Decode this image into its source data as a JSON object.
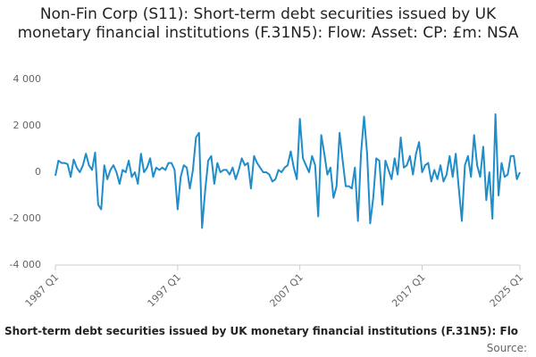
{
  "chart_data": {
    "type": "line",
    "title": "Non-Fin Corp (S11): Short-term debt securities issued by UK monetary financial institutions (F.31N5): Flow: Asset: CP: £m: NSA",
    "caption": "Short-term debt securities issued by UK monetary financial institutions (F.31N5): Flo",
    "source": "Source:",
    "categories": [
      "1987 Q1",
      null,
      null,
      null,
      null,
      null,
      null,
      null,
      null,
      null,
      null,
      null,
      null,
      null,
      null,
      null,
      null,
      null,
      null,
      null,
      null,
      null,
      null,
      null,
      null,
      null,
      null,
      null,
      null,
      null,
      null,
      null,
      null,
      null,
      null,
      null,
      null,
      null,
      null,
      null,
      "1997 Q1",
      null,
      null,
      null,
      null,
      null,
      null,
      null,
      null,
      null,
      null,
      null,
      null,
      null,
      null,
      null,
      null,
      null,
      null,
      null,
      null,
      null,
      null,
      null,
      null,
      null,
      null,
      null,
      null,
      null,
      null,
      null,
      null,
      null,
      null,
      null,
      null,
      null,
      null,
      null,
      "2007 Q1",
      null,
      null,
      null,
      null,
      null,
      null,
      null,
      null,
      null,
      null,
      null,
      null,
      null,
      null,
      null,
      null,
      null,
      null,
      null,
      null,
      null,
      null,
      null,
      null,
      null,
      null,
      null,
      null,
      null,
      null,
      null,
      null,
      null,
      null,
      null,
      null,
      null,
      null,
      null,
      "2017 Q1",
      null,
      null,
      null,
      null,
      null,
      null,
      null,
      null,
      null,
      null,
      null,
      null,
      null,
      null,
      null,
      null,
      null,
      null,
      null,
      null,
      null,
      null,
      null,
      null,
      null,
      null,
      null,
      null,
      null,
      null,
      null,
      "2025 Q1"
    ],
    "series": [
      {
        "color": "#1f8dc9",
        "values": [
          -150,
          500,
          400,
          400,
          350,
          -200,
          550,
          200,
          0,
          300,
          800,
          300,
          100,
          850,
          -1400,
          -1600,
          300,
          -300,
          100,
          300,
          0,
          -500,
          100,
          0,
          500,
          -200,
          0,
          -500,
          800,
          0,
          200,
          600,
          -200,
          200,
          100,
          200,
          100,
          400,
          400,
          100,
          -1600,
          -200,
          300,
          200,
          -700,
          100,
          1500,
          1700,
          -2400,
          -800,
          500,
          700,
          -500,
          400,
          0,
          100,
          100,
          -100,
          200,
          -300,
          100,
          600,
          300,
          400,
          -700,
          700,
          400,
          200,
          0,
          0,
          -100,
          -400,
          -300,
          100,
          0,
          200,
          300,
          900,
          200,
          -300,
          2300,
          600,
          300,
          0,
          700,
          300,
          -1900,
          1600,
          800,
          -100,
          200,
          -1100,
          -600,
          1700,
          500,
          -600,
          -600,
          -700,
          200,
          -2100,
          800,
          2400,
          800,
          -2200,
          -1100,
          600,
          500,
          -1400,
          500,
          100,
          -300,
          600,
          -100,
          1500,
          200,
          300,
          700,
          -100,
          800,
          1300,
          0,
          300,
          400,
          -400,
          100,
          -300,
          300,
          -400,
          -100,
          700,
          -200,
          800,
          -700,
          -2100,
          300,
          700,
          -200,
          1600,
          300,
          -200,
          1100,
          -1200,
          0,
          -2000,
          2500,
          -1000,
          400,
          -200,
          -100,
          700,
          700,
          -300,
          0
        ]
      }
    ],
    "ylim": [
      -4000,
      4000
    ],
    "yticks": [
      {
        "value": 4000,
        "label": "4 000"
      },
      {
        "value": 2000,
        "label": "2 000"
      },
      0,
      {
        "value": -2000,
        "label": "-2 000"
      },
      {
        "value": -4000,
        "label": "-4 000"
      }
    ],
    "grid": false
  }
}
